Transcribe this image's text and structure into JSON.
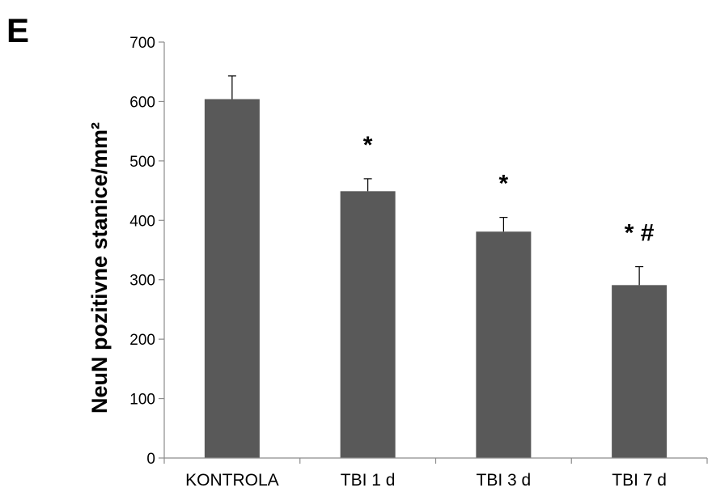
{
  "panel_label": "E",
  "chart_data": {
    "type": "bar",
    "categories": [
      "KONTROLA",
      "TBI 1 d",
      "TBI 3 d",
      "TBI 7 d"
    ],
    "values": [
      604,
      449,
      381,
      291
    ],
    "error_upper": [
      643,
      470,
      405,
      322
    ],
    "annotations": [
      "",
      "*",
      "*",
      "* #"
    ],
    "title": "",
    "xlabel": "",
    "ylabel": "NeuN pozitivne stanice/mm²",
    "ylim": [
      0,
      700
    ],
    "yticks": [
      0,
      100,
      200,
      300,
      400,
      500,
      600,
      700
    ],
    "grid": false,
    "legend": "none",
    "bar_color": "#595959"
  }
}
